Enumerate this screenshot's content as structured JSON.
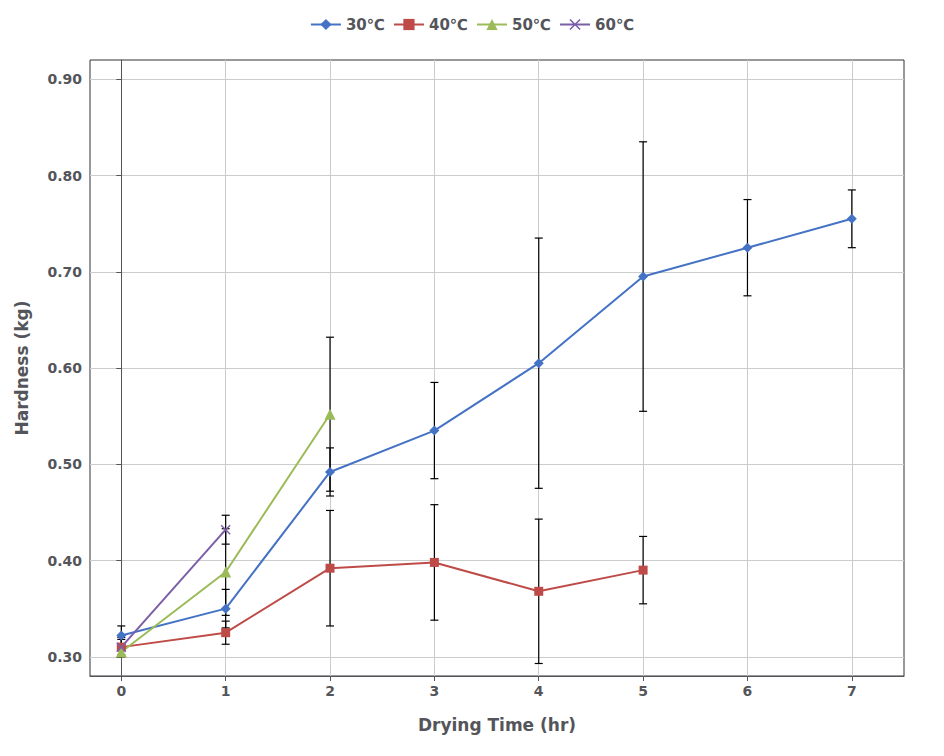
{
  "chart_data": {
    "type": "line",
    "xlabel": "Drying Time (hr)",
    "ylabel": "Hardness (kg)",
    "xlim": [
      -0.3,
      7.5
    ],
    "ylim": [
      0.28,
      0.92
    ],
    "xticks": [
      0,
      1,
      2,
      3,
      4,
      5,
      6,
      7
    ],
    "yticks": [
      {
        "value": 0.3,
        "label": "0.30"
      },
      {
        "value": 0.4,
        "label": "0.40"
      },
      {
        "value": 0.5,
        "label": "0.50"
      },
      {
        "value": 0.6,
        "label": "0.60"
      },
      {
        "value": 0.7,
        "label": "0.70"
      },
      {
        "value": 0.8,
        "label": "0.80"
      },
      {
        "value": 0.9,
        "label": "0.90"
      }
    ],
    "grid": true,
    "legend": "top",
    "series": [
      {
        "name": "30℃",
        "color": "#4472C4",
        "marker": "diamond",
        "x": [
          0,
          1,
          2,
          3,
          4,
          5,
          6,
          7
        ],
        "values": [
          0.322,
          0.35,
          0.492,
          0.535,
          0.605,
          0.695,
          0.725,
          0.755
        ],
        "yerr": [
          0.01,
          0.02,
          0.025,
          0.05,
          0.13,
          0.14,
          0.05,
          0.03
        ]
      },
      {
        "name": "40℃",
        "color": "#BE4B48",
        "marker": "square",
        "x": [
          0,
          1,
          2,
          3,
          4,
          5
        ],
        "values": [
          0.31,
          0.325,
          0.392,
          0.398,
          0.368,
          0.39
        ],
        "yerr": [
          0.01,
          0.012,
          0.06,
          0.06,
          0.075,
          0.035
        ]
      },
      {
        "name": "50℃",
        "color": "#9BBB59",
        "marker": "triangle",
        "x": [
          0,
          1,
          2
        ],
        "values": [
          0.305,
          0.388,
          0.552
        ],
        "yerr": [
          0.005,
          0.045,
          0.08
        ]
      },
      {
        "name": "60℃",
        "color": "#7B5EA7",
        "marker": "x",
        "x": [
          0,
          1
        ],
        "values": [
          0.31,
          0.432
        ],
        "yerr": [
          0.008,
          0.015
        ]
      }
    ]
  }
}
